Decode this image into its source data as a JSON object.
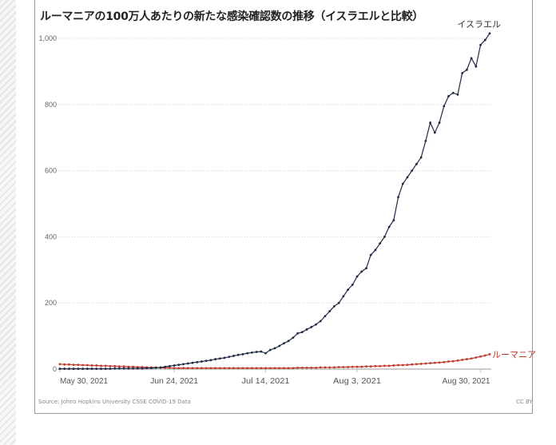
{
  "chart_data": {
    "type": "line",
    "title": "ルーマニアの100万人あたりの新たな感染確認数の推移（イスラエルと比較）",
    "xlabel": "",
    "ylabel": "",
    "x_start": "2021-05-30",
    "x_ticks": [
      {
        "label": "May 30, 2021",
        "day": 0
      },
      {
        "label": "Jun 24, 2021",
        "day": 25
      },
      {
        "label": "Jul 14, 2021",
        "day": 45
      },
      {
        "label": "Aug 3, 2021",
        "day": 65
      },
      {
        "label": "Aug 30, 2021",
        "day": 92
      }
    ],
    "y_ticks": [
      "0",
      "200",
      "400",
      "600",
      "800",
      "1,000"
    ],
    "y_tick_values": [
      0,
      200,
      400,
      600,
      800,
      1000
    ],
    "ylim": [
      0,
      1000
    ],
    "xlim_days": [
      0,
      94
    ],
    "grid": true,
    "series": [
      {
        "name": "イスラエル",
        "color": "#1f2a44",
        "values": [
          1,
          1,
          1,
          1,
          1,
          1,
          1,
          1,
          1,
          1,
          1,
          1,
          2,
          2,
          2,
          2,
          2,
          2,
          2,
          3,
          3,
          4,
          5,
          7,
          9,
          11,
          13,
          15,
          17,
          19,
          21,
          23,
          25,
          27,
          30,
          32,
          34,
          37,
          40,
          43,
          45,
          48,
          50,
          52,
          53,
          48,
          58,
          63,
          70,
          78,
          85,
          95,
          108,
          112,
          120,
          127,
          135,
          145,
          160,
          175,
          190,
          200,
          220,
          240,
          255,
          280,
          295,
          305,
          345,
          360,
          380,
          400,
          430,
          450,
          520,
          560,
          580,
          600,
          620,
          640,
          690,
          745,
          715,
          745,
          795,
          825,
          835,
          830,
          895,
          905,
          940,
          915,
          980,
          995,
          1015
        ]
      },
      {
        "name": "ルーマニア",
        "color": "#c0392b",
        "values": [
          15,
          14,
          14,
          13,
          13,
          12,
          12,
          11,
          11,
          10,
          10,
          9,
          9,
          8,
          8,
          7,
          7,
          6,
          6,
          5,
          5,
          5,
          4,
          4,
          4,
          3,
          3,
          3,
          3,
          3,
          3,
          3,
          3,
          3,
          3,
          3,
          3,
          3,
          3,
          3,
          3,
          3,
          3,
          3,
          3,
          3,
          3,
          3,
          3,
          3,
          3,
          3,
          4,
          4,
          4,
          4,
          4,
          5,
          5,
          5,
          5,
          6,
          6,
          6,
          7,
          7,
          7,
          8,
          8,
          9,
          9,
          10,
          10,
          11,
          12,
          12,
          13,
          14,
          15,
          16,
          17,
          18,
          19,
          20,
          21,
          23,
          24,
          26,
          28,
          30,
          32,
          35,
          38,
          41,
          45
        ]
      }
    ],
    "source": "Source: Johns Hopkins University CSSE COVID-19 Data",
    "license": "CC BY"
  }
}
